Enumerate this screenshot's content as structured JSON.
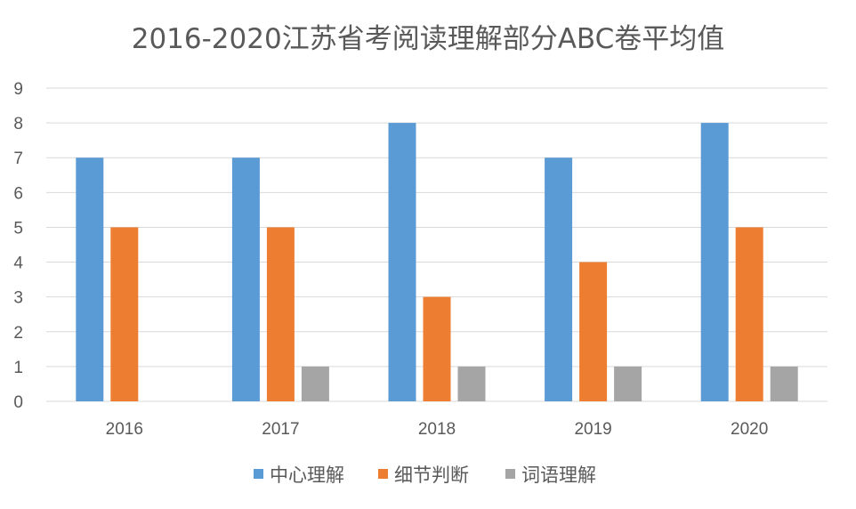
{
  "chart_data": {
    "type": "bar",
    "title": "2016-2020江苏省考阅读理解部分ABC卷平均值",
    "categories": [
      "2016",
      "2017",
      "2018",
      "2019",
      "2020"
    ],
    "series": [
      {
        "name": "中心理解",
        "values": [
          7,
          7,
          8,
          7,
          8
        ],
        "color": "#5b9bd5"
      },
      {
        "name": "细节判断",
        "values": [
          5,
          5,
          3,
          4,
          5
        ],
        "color": "#ed7d31"
      },
      {
        "name": "词语理解",
        "values": [
          0,
          1,
          1,
          1,
          1
        ],
        "color": "#a5a5a5"
      }
    ],
    "ylim": [
      0,
      9
    ],
    "yticks": [
      0,
      1,
      2,
      3,
      4,
      5,
      6,
      7,
      8,
      9
    ],
    "grid": true,
    "legend": "bottom",
    "gridline_color": "#d9d9d9"
  }
}
